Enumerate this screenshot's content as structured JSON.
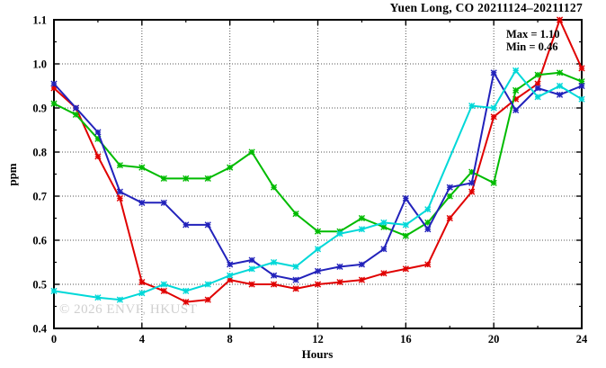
{
  "header": {
    "title": "Yuen Long, CO 20211124–20211127"
  },
  "legend": {
    "max": "Max = 1.10",
    "min": "Min = 0.46"
  },
  "watermark": {
    "text": "© 2026 ENVF, HKUST"
  },
  "chart_data": {
    "type": "line",
    "title": "Yuen Long, CO 20211124–20211127",
    "xlabel": "Hours",
    "ylabel": "ppm",
    "xlim": [
      0,
      24
    ],
    "ylim": [
      0.4,
      1.1
    ],
    "xticks": [
      0,
      4,
      8,
      12,
      16,
      20,
      24
    ],
    "yticks": [
      0.4,
      0.5,
      0.6,
      0.7,
      0.8,
      0.9,
      1.0,
      1.1
    ],
    "x_minor_ticks": [
      2,
      6,
      10,
      14,
      18,
      22
    ],
    "y_minor_step": 0.05,
    "grid": true,
    "legend_position": "top-right-inside",
    "annotations": {
      "max": 1.1,
      "min": 0.46
    },
    "x": [
      0,
      1,
      2,
      3,
      4,
      5,
      6,
      7,
      8,
      9,
      10,
      11,
      12,
      13,
      14,
      15,
      16,
      17,
      18,
      19,
      20,
      21,
      22,
      23,
      24
    ],
    "series": [
      {
        "name": "series-red",
        "color": "#e00000",
        "values": [
          0.945,
          0.9,
          0.79,
          0.695,
          0.505,
          0.485,
          0.46,
          0.465,
          0.51,
          0.5,
          0.5,
          0.49,
          0.5,
          0.505,
          0.51,
          0.525,
          0.535,
          0.545,
          0.65,
          0.71,
          0.88,
          0.92,
          0.955,
          1.1,
          0.99
        ]
      },
      {
        "name": "series-green",
        "color": "#00bb00",
        "values": [
          0.91,
          0.885,
          0.83,
          0.77,
          0.765,
          0.74,
          0.74,
          0.74,
          0.765,
          0.8,
          0.72,
          0.66,
          0.62,
          0.62,
          0.65,
          0.63,
          0.61,
          0.64,
          0.7,
          0.755,
          0.73,
          0.94,
          0.975,
          0.98,
          0.96
        ]
      },
      {
        "name": "series-blue",
        "color": "#2222bb",
        "values": [
          0.955,
          0.9,
          0.845,
          0.71,
          0.685,
          0.685,
          0.635,
          0.635,
          0.545,
          0.555,
          0.52,
          0.51,
          0.53,
          0.54,
          0.545,
          0.58,
          0.695,
          0.625,
          0.72,
          0.73,
          0.98,
          0.895,
          0.945,
          0.93,
          0.95
        ]
      },
      {
        "name": "series-cyan",
        "color": "#00d8d8",
        "values": [
          0.485,
          null,
          0.47,
          0.465,
          0.48,
          0.5,
          0.485,
          0.5,
          0.52,
          0.535,
          0.55,
          0.54,
          0.58,
          0.615,
          0.625,
          0.64,
          0.635,
          0.67,
          null,
          0.905,
          0.9,
          0.985,
          0.925,
          0.95,
          0.92
        ]
      }
    ]
  }
}
